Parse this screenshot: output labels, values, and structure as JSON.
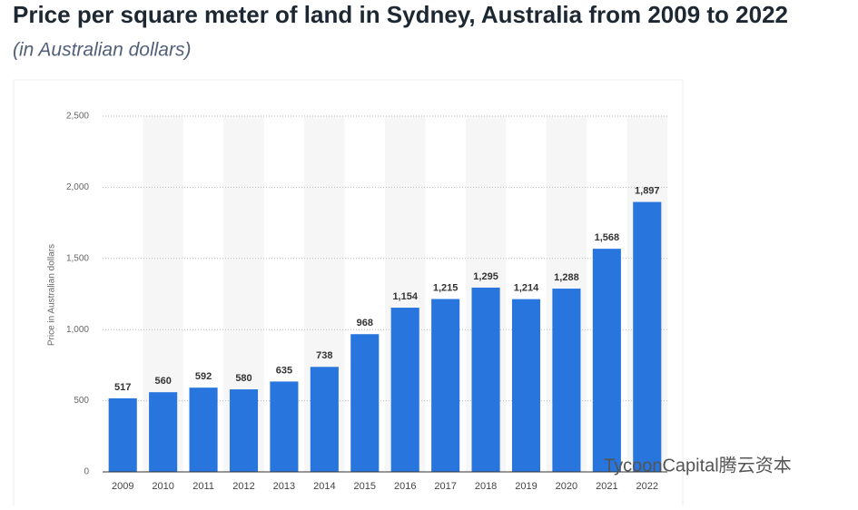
{
  "chart_data": {
    "type": "bar",
    "title": "Price per square meter of land in Sydney, Australia from 2009 to 2022",
    "subtitle": "(in Australian dollars)",
    "y_label": "Price in Australian dollars",
    "watermark": "TycoonCapital腾云资本",
    "categories": [
      "2009",
      "2010",
      "2011",
      "2012",
      "2013",
      "2014",
      "2015",
      "2016",
      "2017",
      "2018",
      "2019",
      "2020",
      "2021",
      "2022"
    ],
    "values": [
      517,
      560,
      592,
      580,
      635,
      738,
      968,
      1154,
      1215,
      1295,
      1214,
      1288,
      1568,
      1897
    ],
    "value_labels": [
      "517",
      "560",
      "592",
      "580",
      "635",
      "738",
      "968",
      "1,154",
      "1,215",
      "1,295",
      "1,214",
      "1,288",
      "1,568",
      "1,897"
    ],
    "color": "#2876dd",
    "ylim": [
      0,
      2500
    ],
    "yticks": [
      0,
      500,
      {
        "value": 1000,
        "label": "1,000"
      },
      {
        "value": 1500,
        "label": "1,500"
      },
      {
        "value": 2000,
        "label": "2,000"
      },
      {
        "value": 2500,
        "label": "2,500"
      }
    ],
    "grid": true
  }
}
